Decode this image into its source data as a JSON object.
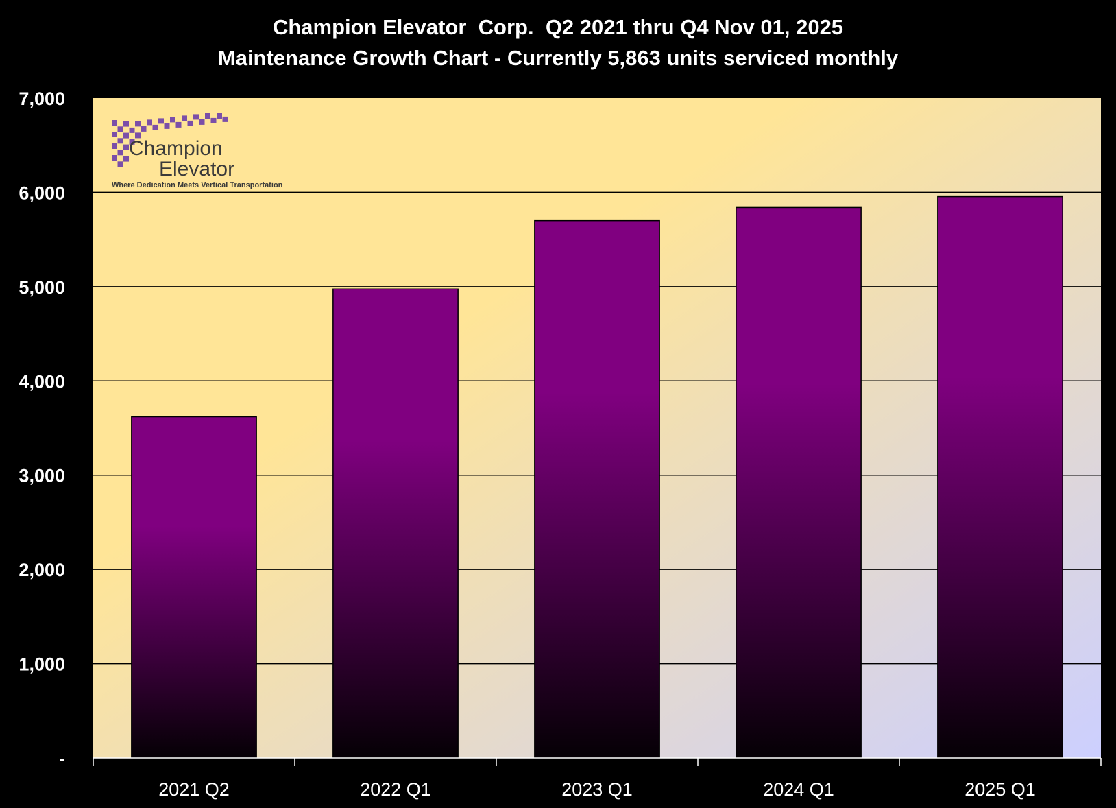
{
  "chart_data": {
    "type": "bar",
    "title": "Champion Elevator  Corp.  Q2 2021 thru Q4 Nov 01, 2025",
    "subtitle": "Maintenance Growth Chart - Currently 5,863 units serviced monthly",
    "categories": [
      "2021 Q2",
      "2022 Q1",
      "2023 Q1",
      "2024 Q1",
      "2025 Q1"
    ],
    "values": [
      3620,
      4975,
      5700,
      5840,
      5955
    ],
    "xlabel": "",
    "ylabel": "",
    "ylim": [
      0,
      7000
    ],
    "yticks": [
      0,
      1000,
      2000,
      3000,
      4000,
      5000,
      6000,
      7000
    ],
    "ytick_labels": [
      "-",
      "1,000",
      "2,000",
      "3,000",
      "4,000",
      "5,000",
      "6,000",
      "7,000"
    ],
    "grid": true,
    "legend": "none",
    "colors": {
      "page_background": "#000000",
      "plot_background_start": "#ffe597",
      "plot_background_end": "#cccfff",
      "bar_top": "#800080",
      "bar_bottom": "#050005",
      "gridline": "#000000",
      "text": "#ffffff"
    }
  },
  "logo": {
    "name_line1": "Champion",
    "name_line2": "Elevator",
    "tagline": "Where Dedication Meets Vertical Transportation",
    "accent_color": "#7b4fa8"
  }
}
